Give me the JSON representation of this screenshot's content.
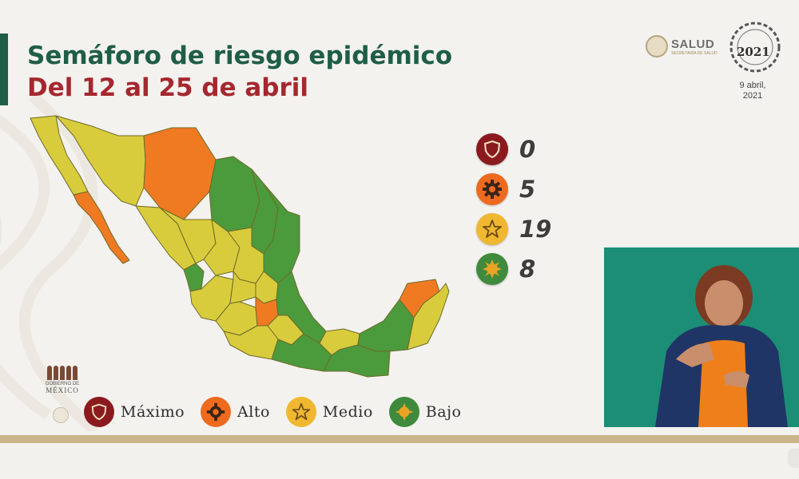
{
  "header": {
    "title": "Semáforo de riesgo epidémico",
    "subtitle": "Del 12 al 25 de abril"
  },
  "logos": {
    "salud_name": "SALUD",
    "salud_sub": "SECRETARÍA DE SALUD",
    "year": "2021",
    "date_line1": "9 abril,",
    "date_line2": "2021",
    "mexico_l1": "GOBIERNO DE",
    "mexico_l2": "MÉXICO"
  },
  "counts": [
    {
      "level": "maximo",
      "value": "0",
      "color": "#8b1a1f",
      "icon": "shield-icon"
    },
    {
      "level": "alto",
      "value": "5",
      "color": "#ee6a1f",
      "icon": "gear-icon"
    },
    {
      "level": "medio",
      "value": "19",
      "color": "#f0b830",
      "icon": "star-icon"
    },
    {
      "level": "bajo",
      "value": "8",
      "color": "#3f8a3c",
      "icon": "sun-icon"
    }
  ],
  "legend": [
    {
      "label": "Máximo",
      "color": "#8b1a1f",
      "icon": "shield-icon"
    },
    {
      "label": "Alto",
      "color": "#ee6a1f",
      "icon": "gear-icon"
    },
    {
      "label": "Medio",
      "color": "#f0b830",
      "icon": "star-icon"
    },
    {
      "label": "Bajo",
      "color": "#3f8a3c",
      "icon": "sun-icon"
    }
  ],
  "map_colors": {
    "yellow": "#d9cc3c",
    "orange": "#f07a22",
    "green": "#4b9a3c"
  }
}
